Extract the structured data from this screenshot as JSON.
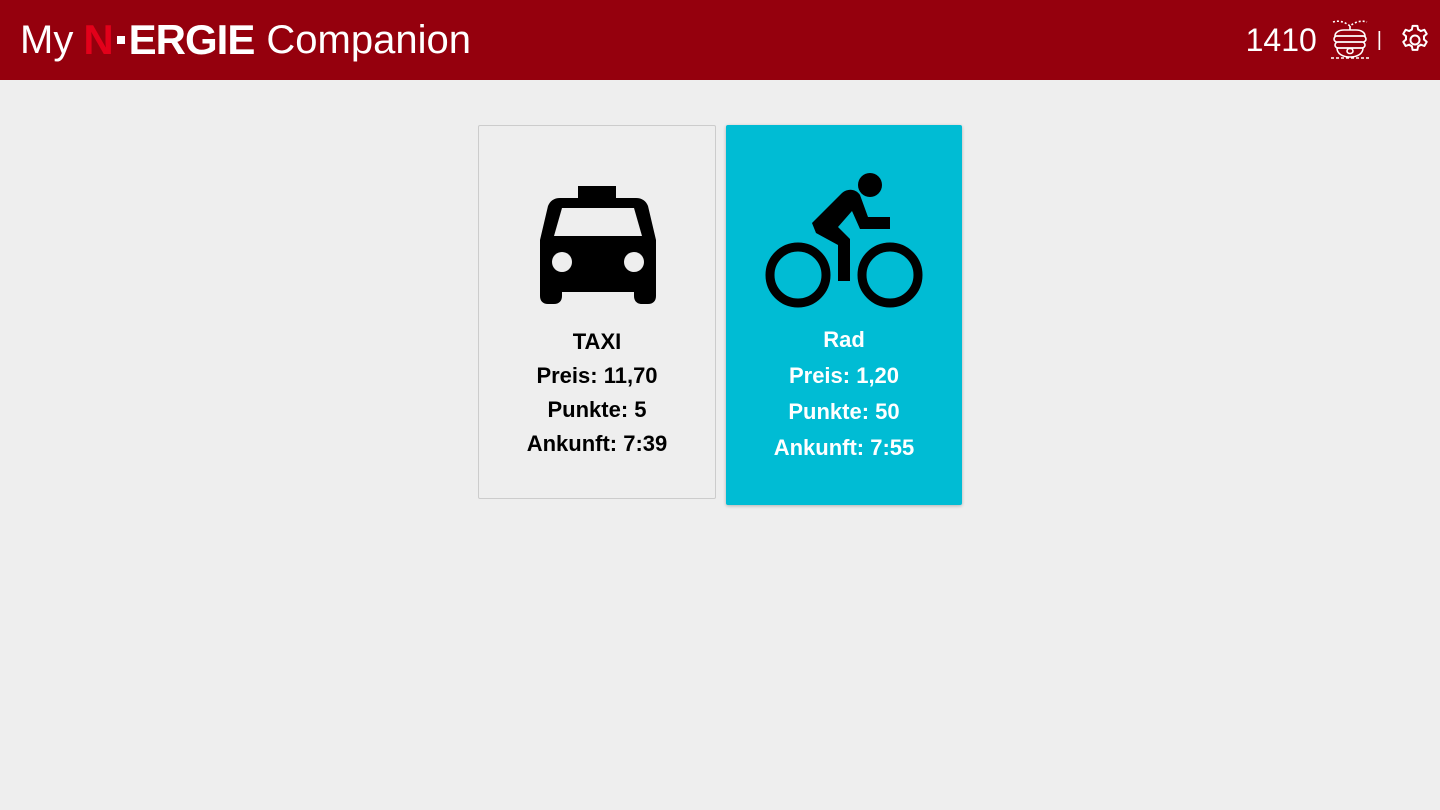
{
  "header": {
    "brand_prefix": "My",
    "brand_logo_n": "N",
    "brand_logo_rest": "ERGIE",
    "brand_suffix": "Companion",
    "score": "1410",
    "divider": "|",
    "icons": [
      "beehive-icon",
      "gear-icon"
    ],
    "colors": {
      "background": "#95000d",
      "logo_accent": "#e2001a"
    }
  },
  "options": [
    {
      "id": "taxi",
      "icon": "taxi-icon",
      "title": "TAXI",
      "price": "Preis: 11,70",
      "points": "Punkte: 5",
      "arrival": "Ankunft: 7:39",
      "selected": false
    },
    {
      "id": "rad",
      "icon": "bike-icon",
      "title": "Rad",
      "price": "Preis: 1,20",
      "points": "Punkte: 50",
      "arrival": "Ankunft: 7:55",
      "selected": true,
      "color": "#00bcd4"
    }
  ]
}
